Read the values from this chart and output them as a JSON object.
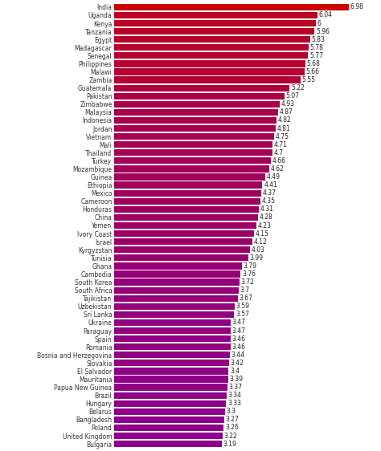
{
  "countries": [
    "India",
    "Uganda",
    "Kenya",
    "Tanzania",
    "Egypt",
    "Madagascar",
    "Senegal",
    "Philippines",
    "Malawi",
    "Zambia",
    "Guatemala",
    "Pakistan",
    "Zimbabwe",
    "Malaysia",
    "Indonesia",
    "Jordan",
    "Vietnam",
    "Mali",
    "Thailand",
    "Turkey",
    "Mozambique",
    "Guinea",
    "Ethiopia",
    "Mexico",
    "Cameroon",
    "Honduras",
    "China",
    "Yemen",
    "Ivory Coast",
    "Israel",
    "Kyrgyzstan",
    "Tunisia",
    "Ghana",
    "Cambodia",
    "South Korea",
    "South Africa",
    "Tajikistan",
    "Uzbekistan",
    "Sri Lanka",
    "Ukraine",
    "Paraguay",
    "Spain",
    "Romania",
    "Bosnia and Herzegovina",
    "Slovakia",
    "El Salvador",
    "Mauritania",
    "Papua New Guinea",
    "Brazil",
    "Hungary",
    "Belarus",
    "Bangladesh",
    "Poland",
    "United Kingdom",
    "Bulgaria"
  ],
  "values": [
    6.98,
    6.04,
    6.0,
    5.96,
    5.83,
    5.78,
    5.77,
    5.68,
    5.66,
    5.55,
    5.22,
    5.07,
    4.93,
    4.87,
    4.82,
    4.81,
    4.75,
    4.71,
    4.7,
    4.66,
    4.62,
    4.49,
    4.41,
    4.37,
    4.35,
    4.31,
    4.28,
    4.23,
    4.15,
    4.12,
    4.03,
    3.99,
    3.79,
    3.76,
    3.72,
    3.7,
    3.67,
    3.59,
    3.57,
    3.47,
    3.47,
    3.46,
    3.46,
    3.44,
    3.42,
    3.4,
    3.39,
    3.37,
    3.34,
    3.33,
    3.3,
    3.27,
    3.26,
    3.22,
    3.19
  ],
  "value_labels": [
    "6.98",
    "6.04",
    "6",
    "5.96",
    "5.83",
    "5.78",
    "5.77",
    "5.68",
    "5.66",
    "5.55",
    "5.22",
    "5.07",
    "4.93",
    "4.87",
    "4.82",
    "4.81",
    "4.75",
    "4.71",
    "4.7",
    "4.66",
    "4.62",
    "4.49",
    "4.41",
    "4.37",
    "4.35",
    "4.31",
    "4.28",
    "4.23",
    "4.15",
    "4.12",
    "4.03",
    "3.99",
    "3.79",
    "3.76",
    "3.72",
    "3.7",
    "3.67",
    "3.59",
    "3.57",
    "3.47",
    "3.47",
    "3.46",
    "3.46",
    "3.44",
    "3.42",
    "3.4",
    "3.39",
    "3.37",
    "3.34",
    "3.33",
    "3.3",
    "3.27",
    "3.26",
    "3.22",
    "3.19"
  ],
  "color_high": [
    204,
    0,
    0
  ],
  "color_low": [
    139,
    0,
    139
  ],
  "vmin": 3.19,
  "vmax": 6.98,
  "background_color": "#ffffff",
  "bar_height": 0.82,
  "value_fontsize": 5.5,
  "label_fontsize": 5.5,
  "figsize": [
    4.74,
    5.62
  ],
  "dpi": 100,
  "xlim_max": 7.6
}
